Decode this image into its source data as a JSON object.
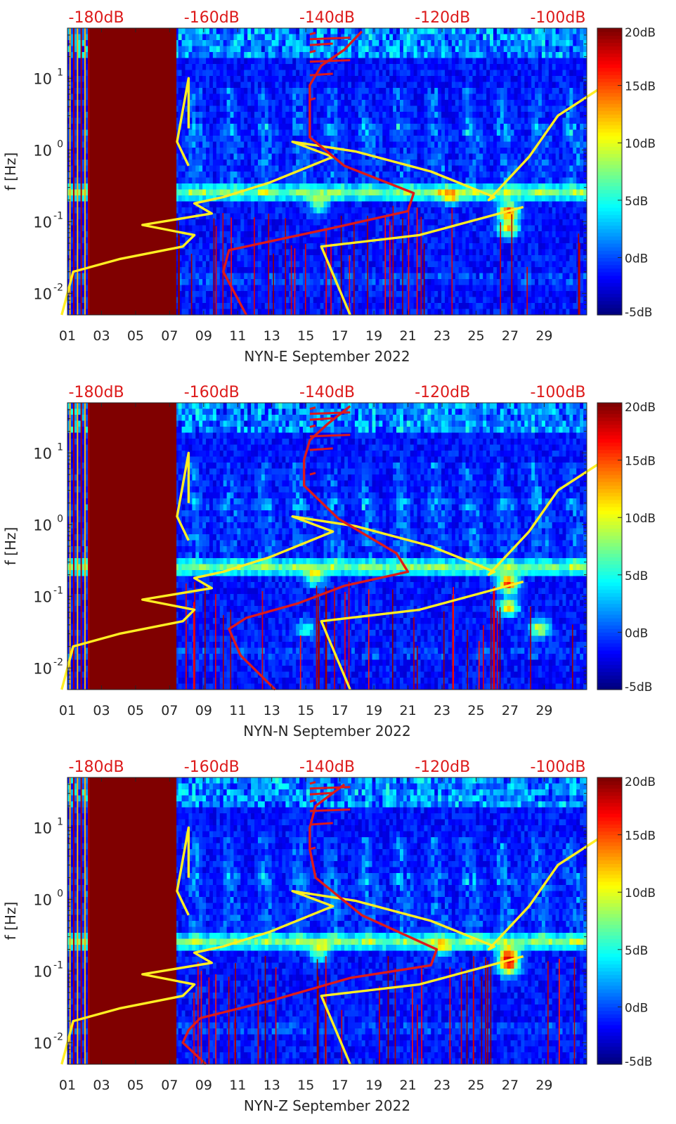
{
  "colors": {
    "noise_model": "#ffee22",
    "psd_mode": "#dd1a1a",
    "top_labels": "#dd1a1a",
    "axis": "#262626"
  },
  "colorbar": {
    "min": -5,
    "max": 20,
    "ticks": [
      -5,
      0,
      5,
      10,
      15,
      20
    ],
    "labels": [
      "-5dB",
      "0dB",
      "5dB",
      "10dB",
      "15dB",
      "20dB"
    ],
    "colormap": "jet"
  },
  "chart_data": [
    {
      "type": "heatmap",
      "title": "",
      "xlabel": "NYN-E September 2022",
      "ylabel": "f [Hz]",
      "xlim": [
        1,
        31.5
      ],
      "ylim": [
        0.005,
        50
      ],
      "x_ticks": [
        "01",
        "03",
        "05",
        "07",
        "09",
        "11",
        "13",
        "15",
        "17",
        "19",
        "21",
        "23",
        "25",
        "27",
        "29"
      ],
      "y_ticks": [
        0.01,
        0.1,
        1,
        10
      ],
      "y_tick_labels": [
        [
          "10",
          "-2"
        ],
        [
          "10",
          "-1"
        ],
        [
          "10",
          "0"
        ],
        [
          "10",
          "1"
        ]
      ],
      "top_axis_labels": [
        "-180dB",
        "-160dB",
        "-140dB",
        "-120dB",
        "-100dB"
      ],
      "top_axis_values": [
        -180,
        -160,
        -140,
        -120,
        -100
      ],
      "top_axis_range": [
        -185,
        -95
      ],
      "gap_days": [
        1.6,
        7.4
      ],
      "hotspots": [
        {
          "day": 26.9,
          "freq": 0.14,
          "level": 19
        },
        {
          "day": 26.9,
          "freq": 0.08,
          "level": 15
        },
        {
          "day": 15.8,
          "freq": 0.17,
          "level": 11
        },
        {
          "day": 23.5,
          "freq": 0.22,
          "level": 10
        }
      ],
      "series": [
        {
          "name": "noise model",
          "color": "#ffee22",
          "db": [
            -186,
            -185,
            -184,
            -176,
            -165,
            -163,
            -172,
            -160,
            -163,
            -158,
            -150,
            -139,
            -146,
            -135,
            -122,
            -111,
            -112,
            -105,
            -100,
            -90
          ],
          "freq": [
            0.005,
            0.01,
            0.02,
            0.03,
            0.045,
            0.065,
            0.09,
            0.13,
            0.18,
            0.22,
            0.35,
            0.8,
            1.3,
            0.95,
            0.5,
            0.22,
            0.2,
            0.8,
            3,
            10
          ]
        },
        {
          "name": "noise model low",
          "color": "#ffee22",
          "db": [
            -136,
            -141,
            -124,
            -106
          ],
          "freq": [
            0.005,
            0.045,
            0.065,
            0.16
          ]
        },
        {
          "name": "noise model left",
          "color": "#ffee22",
          "db": [
            -164,
            -164,
            -166,
            -164
          ],
          "freq": [
            2,
            10,
            1.3,
            0.6
          ]
        },
        {
          "name": "mode",
          "color": "#dd1a1a",
          "db": [
            -154,
            -158,
            -157,
            -149,
            -138,
            -126,
            -125,
            -137,
            -143,
            -143,
            -143,
            -141,
            -137,
            -134
          ],
          "freq": [
            0.005,
            0.02,
            0.04,
            0.055,
            0.085,
            0.14,
            0.25,
            0.6,
            1.5,
            4,
            8,
            15,
            25,
            45
          ]
        }
      ]
    },
    {
      "type": "heatmap",
      "title": "",
      "xlabel": "NYN-N September 2022",
      "ylabel": "f [Hz]",
      "xlim": [
        1,
        31.5
      ],
      "ylim": [
        0.005,
        50
      ],
      "x_ticks": [
        "01",
        "03",
        "05",
        "07",
        "09",
        "11",
        "13",
        "15",
        "17",
        "19",
        "21",
        "23",
        "25",
        "27",
        "29"
      ],
      "y_ticks": [
        0.01,
        0.1,
        1,
        10
      ],
      "y_tick_labels": [
        [
          "10",
          "-2"
        ],
        [
          "10",
          "-1"
        ],
        [
          "10",
          "0"
        ],
        [
          "10",
          "1"
        ]
      ],
      "top_axis_labels": [
        "-180dB",
        "-160dB",
        "-140dB",
        "-120dB",
        "-100dB"
      ],
      "top_axis_values": [
        -180,
        -160,
        -140,
        -120,
        -100
      ],
      "top_axis_range": [
        -185,
        -95
      ],
      "gap_days": [
        1.6,
        7.4
      ],
      "hotspots": [
        {
          "day": 26.9,
          "freq": 0.15,
          "level": 19
        },
        {
          "day": 26.9,
          "freq": 0.07,
          "level": 15
        },
        {
          "day": 15.5,
          "freq": 0.18,
          "level": 11
        },
        {
          "day": 28.7,
          "freq": 0.035,
          "level": 13
        },
        {
          "day": 15.0,
          "freq": 0.035,
          "level": 9
        }
      ],
      "series": [
        {
          "name": "noise model",
          "color": "#ffee22",
          "db": [
            -186,
            -185,
            -184,
            -176,
            -165,
            -163,
            -172,
            -160,
            -163,
            -158,
            -150,
            -139,
            -146,
            -135,
            -122,
            -111,
            -112,
            -105,
            -100,
            -90
          ],
          "freq": [
            0.005,
            0.01,
            0.02,
            0.03,
            0.045,
            0.065,
            0.09,
            0.13,
            0.18,
            0.22,
            0.35,
            0.8,
            1.3,
            0.95,
            0.5,
            0.22,
            0.2,
            0.8,
            3,
            10
          ]
        },
        {
          "name": "noise model low",
          "color": "#ffee22",
          "db": [
            -136,
            -141,
            -124,
            -106
          ],
          "freq": [
            0.005,
            0.045,
            0.065,
            0.16
          ]
        },
        {
          "name": "noise model left",
          "color": "#ffee22",
          "db": [
            -164,
            -164,
            -166,
            -164
          ],
          "freq": [
            2,
            10,
            1.3,
            0.6
          ]
        },
        {
          "name": "mode",
          "color": "#dd1a1a",
          "db": [
            -149,
            -155,
            -157,
            -154,
            -145,
            -137,
            -126,
            -128,
            -138,
            -144,
            -144,
            -143,
            -140,
            -136
          ],
          "freq": [
            0.005,
            0.015,
            0.035,
            0.05,
            0.08,
            0.14,
            0.22,
            0.4,
            1.2,
            3.5,
            8,
            15,
            25,
            45
          ]
        }
      ]
    },
    {
      "type": "heatmap",
      "title": "",
      "xlabel": "NYN-Z September 2022",
      "ylabel": "f [Hz]",
      "xlim": [
        1,
        31.5
      ],
      "ylim": [
        0.005,
        50
      ],
      "x_ticks": [
        "01",
        "03",
        "05",
        "07",
        "09",
        "11",
        "13",
        "15",
        "17",
        "19",
        "21",
        "23",
        "25",
        "27",
        "29"
      ],
      "y_ticks": [
        0.01,
        0.1,
        1,
        10
      ],
      "y_tick_labels": [
        [
          "10",
          "-2"
        ],
        [
          "10",
          "-1"
        ],
        [
          "10",
          "0"
        ],
        [
          "10",
          "1"
        ]
      ],
      "top_axis_labels": [
        "-180dB",
        "-160dB",
        "-140dB",
        "-120dB",
        "-100dB"
      ],
      "top_axis_values": [
        -180,
        -160,
        -140,
        -120,
        -100
      ],
      "top_axis_range": [
        -185,
        -95
      ],
      "gap_days": [
        1.6,
        7.4
      ],
      "hotspots": [
        {
          "day": 26.9,
          "freq": 0.16,
          "level": 19
        },
        {
          "day": 26.9,
          "freq": 0.11,
          "level": 15
        },
        {
          "day": 15.8,
          "freq": 0.18,
          "level": 11
        },
        {
          "day": 23.0,
          "freq": 0.2,
          "level": 9
        }
      ],
      "series": [
        {
          "name": "noise model",
          "color": "#ffee22",
          "db": [
            -186,
            -185,
            -184,
            -176,
            -165,
            -163,
            -172,
            -160,
            -163,
            -158,
            -150,
            -139,
            -146,
            -135,
            -122,
            -111,
            -112,
            -105,
            -100,
            -90
          ],
          "freq": [
            0.005,
            0.01,
            0.02,
            0.03,
            0.045,
            0.065,
            0.09,
            0.13,
            0.18,
            0.22,
            0.35,
            0.8,
            1.3,
            0.95,
            0.5,
            0.22,
            0.2,
            0.8,
            3,
            10
          ]
        },
        {
          "name": "noise model low",
          "color": "#ffee22",
          "db": [
            -136,
            -141,
            -124,
            -106
          ],
          "freq": [
            0.005,
            0.045,
            0.065,
            0.16
          ]
        },
        {
          "name": "noise model left",
          "color": "#ffee22",
          "db": [
            -164,
            -164,
            -166,
            -164
          ],
          "freq": [
            2,
            10,
            1.3,
            0.6
          ]
        },
        {
          "name": "mode",
          "color": "#dd1a1a",
          "db": [
            -161,
            -165,
            -164,
            -162,
            -149,
            -136,
            -122,
            -121,
            -134,
            -142,
            -143,
            -143,
            -142,
            -137
          ],
          "freq": [
            0.005,
            0.01,
            0.015,
            0.022,
            0.04,
            0.08,
            0.12,
            0.2,
            0.6,
            2,
            5,
            10,
            20,
            40
          ]
        }
      ]
    }
  ]
}
